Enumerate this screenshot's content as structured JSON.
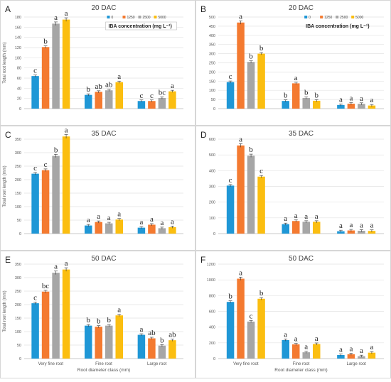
{
  "figure": {
    "xlabel": "Root diameter class (mm)",
    "ylabel": "Total root length (mm)",
    "legend_title": "IBA concentration (mg L⁻¹)",
    "legend_entries": [
      "0",
      "1250",
      "2500",
      "5000"
    ],
    "colors": [
      "#1f97d6",
      "#f47a30",
      "#a6a6a6",
      "#fbbe10"
    ]
  },
  "chart_data": [
    {
      "type": "bar",
      "panel": "A",
      "title": "20 DAC",
      "ylabel": "Total root length (mm)",
      "ylim": [
        0,
        180
      ],
      "yticks": [
        0,
        20,
        40,
        60,
        80,
        100,
        120,
        140,
        160,
        180
      ],
      "categories": [
        "",
        "",
        ""
      ],
      "series": [
        {
          "name": "0",
          "values": [
            64,
            27,
            15
          ]
        },
        {
          "name": "1250",
          "values": [
            121,
            33,
            15
          ]
        },
        {
          "name": "2500",
          "values": [
            167,
            36,
            21
          ]
        },
        {
          "name": "5000",
          "values": [
            175,
            52,
            34
          ]
        }
      ],
      "letters": [
        [
          "c",
          "b",
          "a",
          "a"
        ],
        [
          "b",
          "ab",
          "ab",
          "a"
        ],
        [
          "c",
          "c",
          "bc",
          "a"
        ]
      ],
      "legend": true
    },
    {
      "type": "bar",
      "panel": "B",
      "title": "20 DAC",
      "ylabel": "",
      "ylim": [
        0,
        500
      ],
      "yticks": [
        0,
        50,
        100,
        150,
        200,
        250,
        300,
        350,
        400,
        450,
        500
      ],
      "categories": [
        "",
        "",
        ""
      ],
      "series": [
        {
          "name": "0",
          "values": [
            145,
            42,
            20
          ]
        },
        {
          "name": "1250",
          "values": [
            470,
            138,
            27
          ]
        },
        {
          "name": "2500",
          "values": [
            255,
            58,
            26
          ]
        },
        {
          "name": "5000",
          "values": [
            300,
            43,
            17
          ]
        }
      ],
      "letters": [
        [
          "c",
          "a",
          "b",
          "b"
        ],
        [
          "b",
          "a",
          "b",
          "b"
        ],
        [
          "a",
          "a",
          "a",
          "a"
        ]
      ],
      "legend": true
    },
    {
      "type": "bar",
      "panel": "C",
      "title": "35 DAC",
      "ylabel": "Total root length (mm)",
      "ylim": [
        0,
        350
      ],
      "yticks": [
        0,
        50,
        100,
        150,
        200,
        250,
        300,
        350
      ],
      "categories": [
        "",
        "",
        ""
      ],
      "series": [
        {
          "name": "0",
          "values": [
            222,
            30,
            22
          ]
        },
        {
          "name": "1250",
          "values": [
            235,
            43,
            33
          ]
        },
        {
          "name": "2500",
          "values": [
            288,
            38,
            20
          ]
        },
        {
          "name": "5000",
          "values": [
            360,
            52,
            24
          ]
        }
      ],
      "letters": [
        [
          "c",
          "c",
          "b",
          "a"
        ],
        [
          "a",
          "a",
          "a",
          "a"
        ],
        [
          "a",
          "a",
          "a",
          "a"
        ]
      ],
      "legend": false
    },
    {
      "type": "bar",
      "panel": "D",
      "title": "35 DAC",
      "ylabel": "",
      "ylim": [
        0,
        600
      ],
      "yticks": [
        0,
        100,
        200,
        300,
        400,
        500,
        600
      ],
      "categories": [
        "",
        "",
        ""
      ],
      "series": [
        {
          "name": "0",
          "values": [
            305,
            60,
            15
          ]
        },
        {
          "name": "1250",
          "values": [
            560,
            80,
            20
          ]
        },
        {
          "name": "2500",
          "values": [
            495,
            75,
            18
          ]
        },
        {
          "name": "5000",
          "values": [
            362,
            75,
            17
          ]
        }
      ],
      "letters": [
        [
          "c",
          "a",
          "b",
          "c"
        ],
        [
          "a",
          "a",
          "a",
          "a"
        ],
        [
          "a",
          "a",
          "a",
          "a"
        ]
      ],
      "legend": false
    },
    {
      "type": "bar",
      "panel": "E",
      "title": "50 DAC",
      "ylabel": "Total root length (mm)",
      "ylim": [
        0,
        350
      ],
      "yticks": [
        0,
        50,
        100,
        150,
        200,
        250,
        300,
        350
      ],
      "categories": [
        "Very fine root",
        "Fine root",
        "Large root"
      ],
      "series": [
        {
          "name": "0",
          "values": [
            205,
            122,
            88
          ]
        },
        {
          "name": "1250",
          "values": [
            248,
            118,
            75
          ]
        },
        {
          "name": "2500",
          "values": [
            318,
            122,
            48
          ]
        },
        {
          "name": "5000",
          "values": [
            330,
            160,
            68
          ]
        }
      ],
      "letters": [
        [
          "c",
          "bc",
          "a",
          "a"
        ],
        [
          "b",
          "b",
          "b",
          "a"
        ],
        [
          "a",
          "ab",
          "b",
          "ab"
        ]
      ],
      "legend": false
    },
    {
      "type": "bar",
      "panel": "F",
      "title": "50 DAC",
      "ylabel": "",
      "ylim": [
        0,
        1200
      ],
      "yticks": [
        0,
        200,
        400,
        600,
        800,
        1000,
        1200
      ],
      "categories": [
        "Very fine root",
        "Fine root",
        "Large root"
      ],
      "series": [
        {
          "name": "0",
          "values": [
            720,
            235,
            45
          ]
        },
        {
          "name": "1250",
          "values": [
            1015,
            180,
            55
          ]
        },
        {
          "name": "2500",
          "values": [
            470,
            80,
            30
          ]
        },
        {
          "name": "5000",
          "values": [
            760,
            185,
            75
          ]
        }
      ],
      "letters": [
        [
          "b",
          "a",
          "c",
          "b"
        ],
        [
          "a",
          "a",
          "a",
          "a"
        ],
        [
          "a",
          "a",
          "a",
          "a"
        ]
      ],
      "legend": false
    }
  ]
}
